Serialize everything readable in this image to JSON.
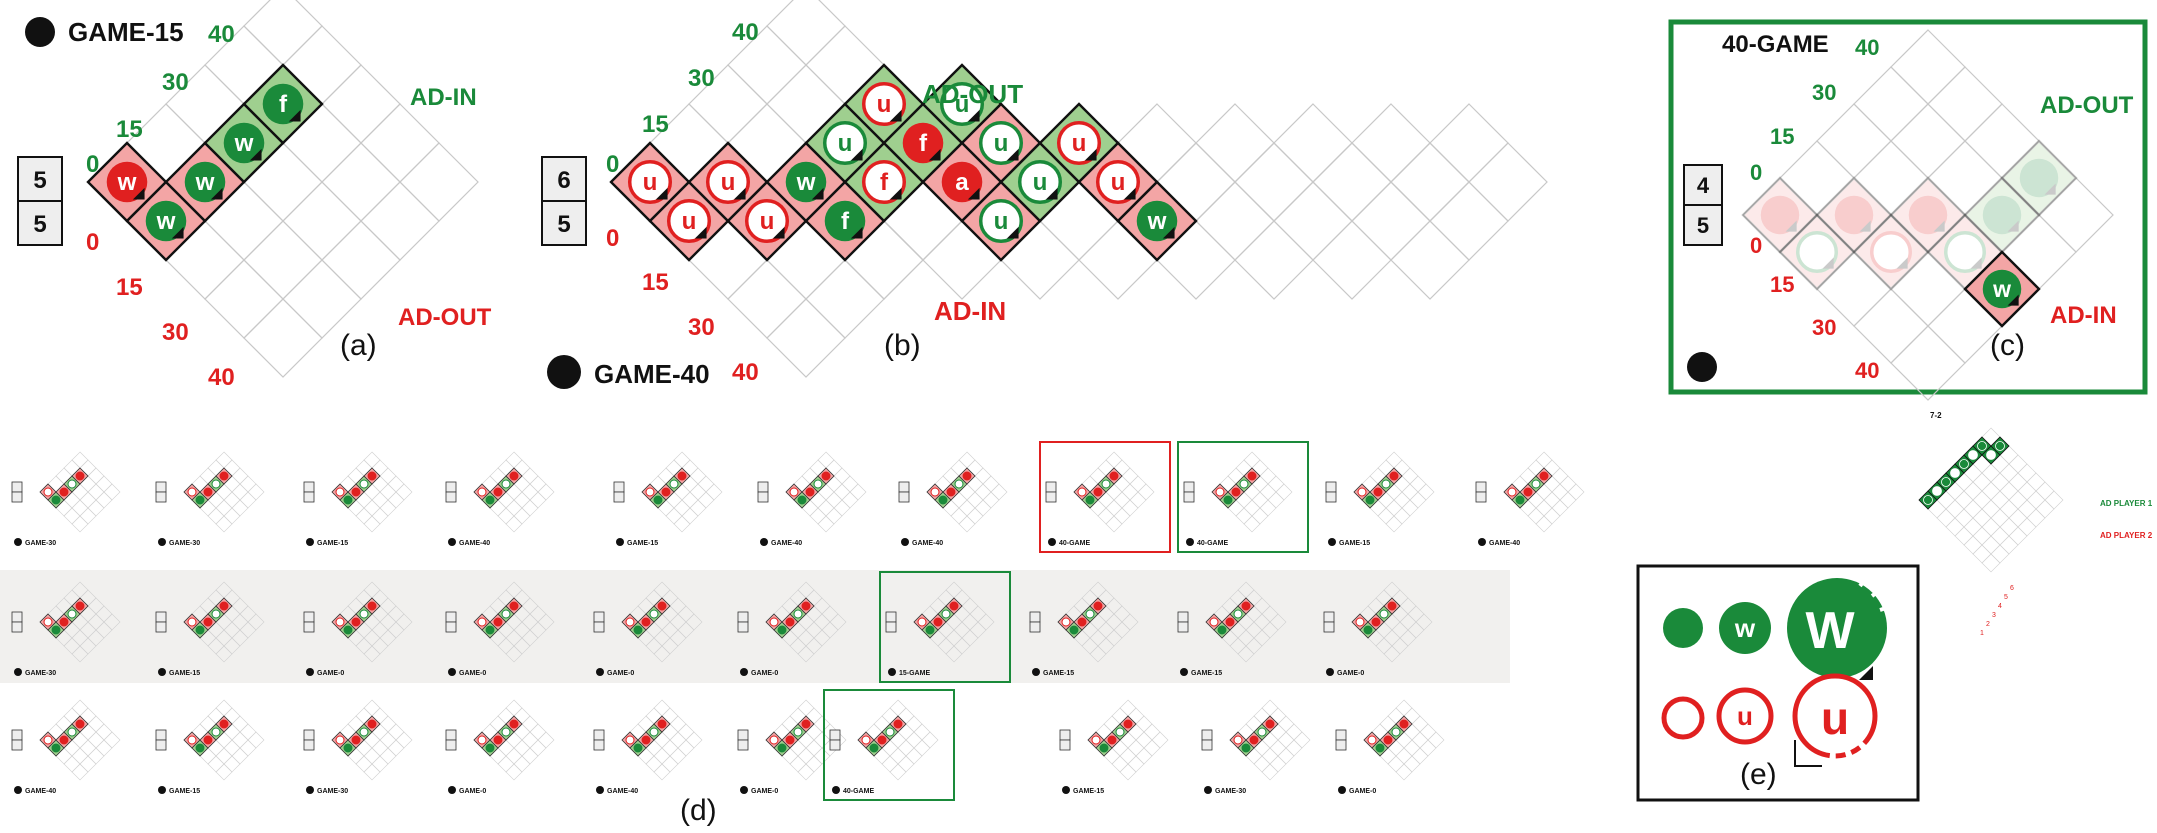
{
  "colors": {
    "green": "#1a8a3a",
    "green_light": "#9fcf8f",
    "red": "#e02020",
    "red_light": "#f3a5a5",
    "grid": "#c8c8c8",
    "dark": "#111111",
    "shade": "#f1f0ee"
  },
  "panel_a": {
    "caption": "(a)",
    "game_label": "GAME-15",
    "ad_in": "AD-IN",
    "ad_out": "AD-OUT",
    "score_top": "5",
    "score_bottom": "5",
    "p1_scores": [
      "0",
      "15",
      "30",
      "40"
    ],
    "p2_scores": [
      "0",
      "15",
      "30",
      "40"
    ],
    "points": [
      "w",
      "w",
      "w",
      "w",
      "f"
    ]
  },
  "panel_b": {
    "caption": "(b)",
    "game_label": "GAME-40",
    "ad_in": "AD-IN",
    "ad_out": "AD-OUT",
    "score_top": "6",
    "score_bottom": "5",
    "p1_scores": [
      "0",
      "15",
      "30",
      "40"
    ],
    "p2_scores": [
      "0",
      "15",
      "30",
      "40"
    ],
    "points": [
      "u",
      "u",
      "u",
      "u",
      "w",
      "f",
      "f",
      "u",
      "u",
      "f",
      "u",
      "u",
      "a",
      "u",
      "u",
      "u",
      "u",
      "w"
    ]
  },
  "panel_c": {
    "caption": "(c)",
    "game_label": "40-GAME",
    "ad_in": "AD-IN",
    "ad_out": "AD-OUT",
    "score_top": "4",
    "score_bottom": "5",
    "p1_scores": [
      "0",
      "15",
      "30",
      "40"
    ],
    "p2_scores": [
      "0",
      "15",
      "30",
      "40"
    ],
    "points": [
      "w"
    ]
  },
  "panel_d": {
    "caption": "(d)",
    "row1": [
      "GAME-30",
      "GAME-30",
      "GAME-15",
      "GAME-40",
      "GAME-15",
      "GAME-40",
      "GAME-40",
      "40-GAME",
      "40-GAME",
      "GAME-15",
      "GAME-40"
    ],
    "row2": [
      "GAME-30",
      "GAME-15",
      "GAME-0",
      "GAME-0",
      "GAME-0",
      "GAME-0",
      "15-GAME",
      "GAME-15",
      "GAME-15",
      "GAME-0"
    ],
    "row3": [
      "GAME-40",
      "GAME-15",
      "GAME-30",
      "GAME-0",
      "GAME-40",
      "GAME-0",
      "40-GAME",
      "GAME-15",
      "GAME-30",
      "GAME-0"
    ],
    "overview_title": "7-2",
    "overview_player1": "AD PLAYER 1",
    "overview_player2": "AD PLAYER 2",
    "overview_scores": [
      "6",
      "5",
      "4",
      "3",
      "2",
      "1"
    ]
  },
  "panel_e": {
    "caption": "(e)",
    "glyph_w_small": "w",
    "glyph_w_large": "W",
    "glyph_u_small": "u",
    "glyph_u_large": "u"
  }
}
